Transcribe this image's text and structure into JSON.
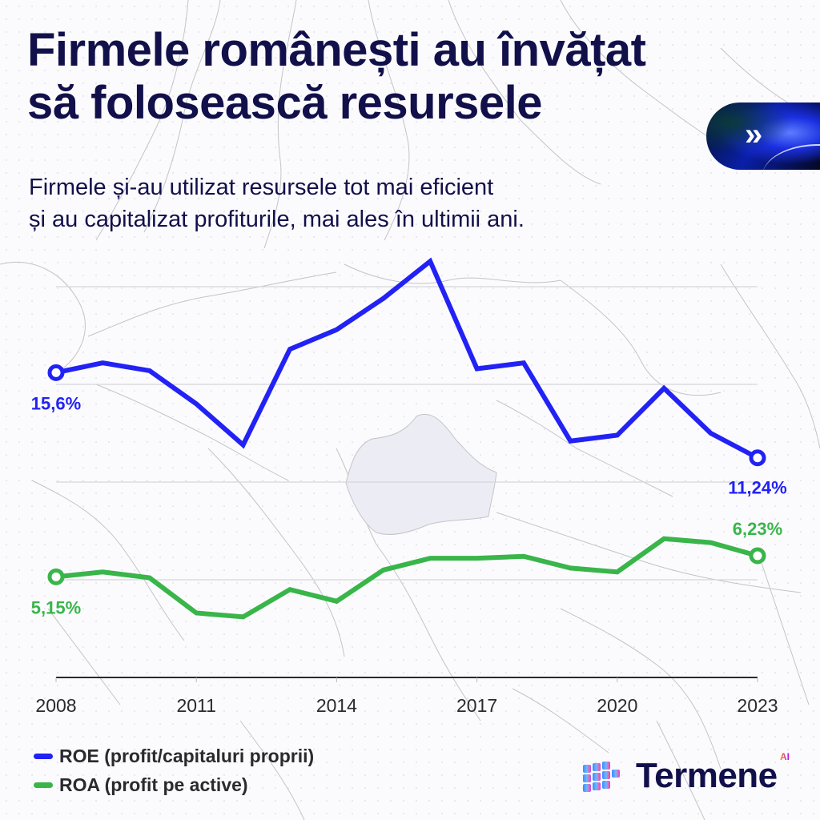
{
  "header": {
    "title_line1": "Firmele românești au învățat",
    "title_line2": "să folosească resursele",
    "subtitle_line1": "Firmele și-au utilizat resursele tot mai eficient",
    "subtitle_line2": "și au capitalizat profiturile, mai ales în ultimii ani.",
    "nav_icon": "double-chevron-right-icon",
    "nav_symbol": "»"
  },
  "legend": {
    "items": [
      {
        "label": "ROE (profit/capitaluri proprii)",
        "color": "#2222f5"
      },
      {
        "label": "ROA (profit pe active)",
        "color": "#39b54a"
      }
    ]
  },
  "brand": {
    "name": "Termene",
    "suffix": "AI"
  },
  "colors": {
    "title": "#12104a",
    "roe": "#2222f5",
    "roa": "#39b54a",
    "grid": "#d6d6da",
    "axis": "#2a2a2e",
    "romania_fill": "#ececf4"
  },
  "chart_data": {
    "type": "line",
    "title": "Firmele românești au învățat să folosească resursele",
    "subtitle": "Firmele și-au utilizat resursele tot mai eficient și au capitalizat profiturile, mai ales în ultimii ani.",
    "xlabel": "",
    "ylabel": "",
    "x": [
      2008,
      2009,
      2010,
      2011,
      2012,
      2013,
      2014,
      2015,
      2016,
      2017,
      2018,
      2019,
      2020,
      2021,
      2022,
      2023
    ],
    "x_tick_labels": [
      "2008",
      "2011",
      "2014",
      "2017",
      "2020",
      "2023"
    ],
    "ylim": [
      0,
      20
    ],
    "y_gridlines": [
      5,
      10,
      15,
      20
    ],
    "y_tick_labels_shown": false,
    "grid": true,
    "legend_position": "bottom-left",
    "series": [
      {
        "name": "ROE (profit/capitaluri proprii)",
        "color": "#2222f5",
        "values": [
          15.6,
          16.1,
          15.7,
          14.0,
          11.9,
          16.8,
          17.8,
          19.4,
          21.3,
          15.8,
          16.1,
          12.1,
          12.4,
          14.8,
          12.5,
          11.24
        ],
        "start_label": "15,6%",
        "end_label": "11,24%"
      },
      {
        "name": "ROA (profit pe active)",
        "color": "#39b54a",
        "values": [
          5.15,
          5.4,
          5.1,
          3.3,
          3.1,
          4.5,
          3.9,
          5.5,
          6.1,
          6.1,
          6.2,
          5.6,
          5.4,
          7.1,
          6.9,
          6.23
        ],
        "start_label": "5,15%",
        "end_label": "6,23%"
      }
    ]
  }
}
